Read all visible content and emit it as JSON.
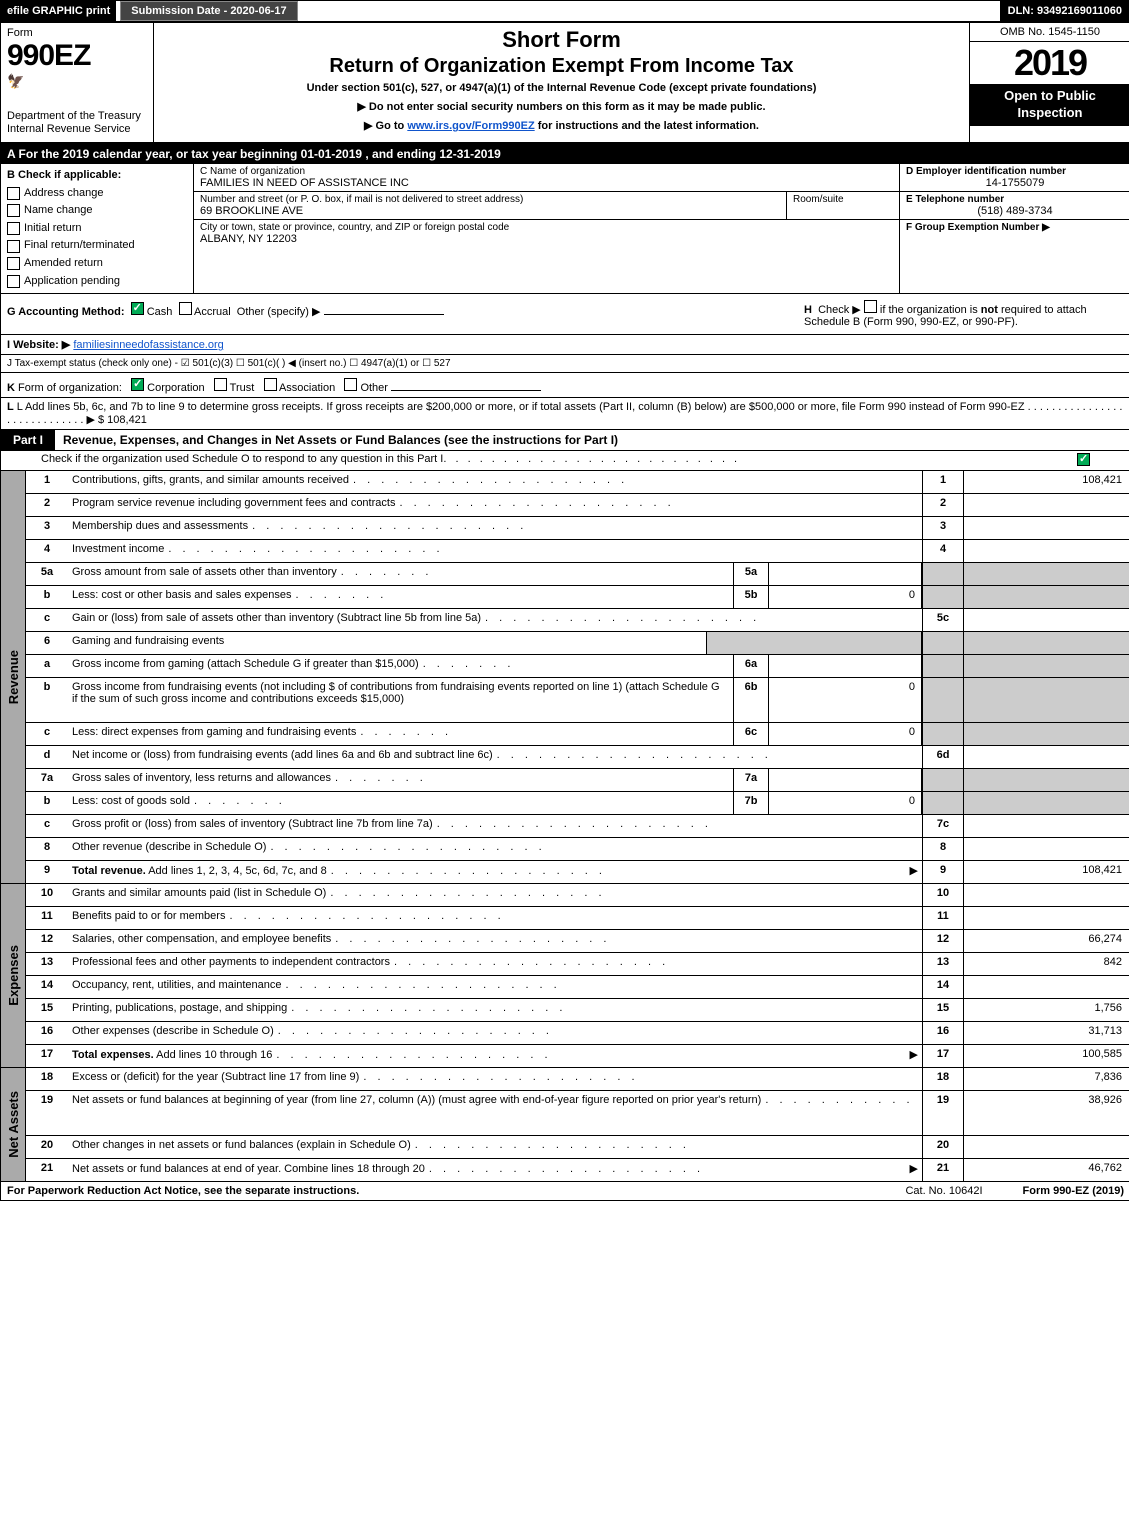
{
  "top_bar": {
    "efile": "efile GRAPHIC print",
    "submission": "Submission Date - 2020-06-17",
    "dln": "DLN: 93492169011060"
  },
  "header": {
    "form_word": "Form",
    "form_number": "990EZ",
    "dept": "Department of the Treasury",
    "irs": "Internal Revenue Service",
    "short_form": "Short Form",
    "return_title": "Return of Organization Exempt From Income Tax",
    "under_section": "Under section 501(c), 527, or 4947(a)(1) of the Internal Revenue Code (except private foundations)",
    "no_ssn": "▶ Do not enter social security numbers on this form as it may be made public.",
    "goto": "▶ Go to www.irs.gov/Form990EZ for instructions and the latest information.",
    "goto_prefix": "▶ Go to ",
    "goto_link": "www.irs.gov/Form990EZ",
    "goto_suffix": " for instructions and the latest information.",
    "omb": "OMB No. 1545-1150",
    "year": "2019",
    "open_public": "Open to Public Inspection"
  },
  "period": {
    "text": "A For the 2019 calendar year, or tax year beginning 01-01-2019 , and ending 12-31-2019"
  },
  "section_b": {
    "label": "B Check if applicable:",
    "items": [
      "Address change",
      "Name change",
      "Initial return",
      "Final return/terminated",
      "Amended return",
      "Application pending"
    ]
  },
  "section_c": {
    "name_label": "C Name of organization",
    "name": "FAMILIES IN NEED OF ASSISTANCE INC",
    "addr_label": "Number and street (or P. O. box, if mail is not delivered to street address)",
    "addr": "69 BROOKLINE AVE",
    "room_label": "Room/suite",
    "city_label": "City or town, state or province, country, and ZIP or foreign postal code",
    "city": "ALBANY, NY  12203"
  },
  "section_d": {
    "label": "D Employer identification number",
    "value": "14-1755079"
  },
  "section_e": {
    "label": "E Telephone number",
    "value": "(518) 489-3734"
  },
  "section_f": {
    "label": "F Group Exemption Number   ▶"
  },
  "section_g": {
    "label": "G Accounting Method:",
    "cash": "Cash",
    "accrual": "Accrual",
    "other": "Other (specify) ▶"
  },
  "section_h": {
    "text": "H  Check ▶     if the organization is not required to attach Schedule B (Form 990, 990-EZ, or 990-PF)."
  },
  "section_i": {
    "label": "I Website: ▶",
    "value": "familiesinneedofassistance.org"
  },
  "section_j": {
    "text": "J Tax-exempt status (check only one) - ☑ 501(c)(3)  ☐ 501(c)(  ) ◀ (insert no.)  ☐ 4947(a)(1) or  ☐ 527"
  },
  "section_k": {
    "text": "K Form of organization:   ☑ Corporation   ☐ Trust   ☐ Association   ☐ Other"
  },
  "section_l": {
    "text": "L Add lines 5b, 6c, and 7b to line 9 to determine gross receipts. If gross receipts are $200,000 or more, or if total assets (Part II, column (B) below) are $500,000 or more, file Form 990 instead of Form 990-EZ",
    "dots": ". . . . . . . . . . . . . . . . . . . . . . . . . . . . .",
    "amount": "▶ $ 108,421"
  },
  "part1": {
    "tab": "Part I",
    "title": "Revenue, Expenses, and Changes in Net Assets or Fund Balances (see the instructions for Part I)",
    "subtitle": "Check if the organization used Schedule O to respond to any question in this Part I"
  },
  "side_labels": {
    "revenue": "Revenue",
    "expenses": "Expenses",
    "net_assets": "Net Assets"
  },
  "revenue_rows": [
    {
      "n": "1",
      "desc": "Contributions, gifts, grants, and similar amounts received",
      "ln": "1",
      "val": "108,421"
    },
    {
      "n": "2",
      "desc": "Program service revenue including government fees and contracts",
      "ln": "2",
      "val": ""
    },
    {
      "n": "3",
      "desc": "Membership dues and assessments",
      "ln": "3",
      "val": ""
    },
    {
      "n": "4",
      "desc": "Investment income",
      "ln": "4",
      "val": ""
    },
    {
      "n": "5a",
      "desc": "Gross amount from sale of assets other than inventory",
      "sub": "5a",
      "subval": "",
      "grey": true
    },
    {
      "n": "b",
      "desc": "Less: cost or other basis and sales expenses",
      "sub": "5b",
      "subval": "0",
      "grey": true
    },
    {
      "n": "c",
      "desc": "Gain or (loss) from sale of assets other than inventory (Subtract line 5b from line 5a)",
      "ln": "5c",
      "val": ""
    },
    {
      "n": "6",
      "desc": "Gaming and fundraising events",
      "nolinecol": true,
      "grey": true
    },
    {
      "n": "a",
      "desc": "Gross income from gaming (attach Schedule G if greater than $15,000)",
      "sub": "6a",
      "subval": "",
      "grey": true
    },
    {
      "n": "b",
      "desc": "Gross income from fundraising events (not including $                       of contributions from fundraising events reported on line 1) (attach Schedule G if the sum of such gross income and contributions exceeds $15,000)",
      "sub": "6b",
      "subval": "0",
      "grey": true,
      "tall": true
    },
    {
      "n": "c",
      "desc": "Less: direct expenses from gaming and fundraising events",
      "sub": "6c",
      "subval": "0",
      "grey": true
    },
    {
      "n": "d",
      "desc": "Net income or (loss) from fundraising events (add lines 6a and 6b and subtract line 6c)",
      "ln": "6d",
      "val": ""
    },
    {
      "n": "7a",
      "desc": "Gross sales of inventory, less returns and allowances",
      "sub": "7a",
      "subval": "",
      "grey": true
    },
    {
      "n": "b",
      "desc": "Less: cost of goods sold",
      "sub": "7b",
      "subval": "0",
      "grey": true
    },
    {
      "n": "c",
      "desc": "Gross profit or (loss) from sales of inventory (Subtract line 7b from line 7a)",
      "ln": "7c",
      "val": ""
    },
    {
      "n": "8",
      "desc": "Other revenue (describe in Schedule O)",
      "ln": "8",
      "val": ""
    },
    {
      "n": "9",
      "desc": "Total revenue. Add lines 1, 2, 3, 4, 5c, 6d, 7c, and 8",
      "ln": "9",
      "val": "108,421",
      "bold": true,
      "arrow": true
    }
  ],
  "expense_rows": [
    {
      "n": "10",
      "desc": "Grants and similar amounts paid (list in Schedule O)",
      "ln": "10",
      "val": ""
    },
    {
      "n": "11",
      "desc": "Benefits paid to or for members",
      "ln": "11",
      "val": ""
    },
    {
      "n": "12",
      "desc": "Salaries, other compensation, and employee benefits",
      "ln": "12",
      "val": "66,274"
    },
    {
      "n": "13",
      "desc": "Professional fees and other payments to independent contractors",
      "ln": "13",
      "val": "842"
    },
    {
      "n": "14",
      "desc": "Occupancy, rent, utilities, and maintenance",
      "ln": "14",
      "val": ""
    },
    {
      "n": "15",
      "desc": "Printing, publications, postage, and shipping",
      "ln": "15",
      "val": "1,756"
    },
    {
      "n": "16",
      "desc": "Other expenses (describe in Schedule O)",
      "ln": "16",
      "val": "31,713"
    },
    {
      "n": "17",
      "desc": "Total expenses. Add lines 10 through 16",
      "ln": "17",
      "val": "100,585",
      "bold": true,
      "arrow": true
    }
  ],
  "netasset_rows": [
    {
      "n": "18",
      "desc": "Excess or (deficit) for the year (Subtract line 17 from line 9)",
      "ln": "18",
      "val": "7,836"
    },
    {
      "n": "19",
      "desc": "Net assets or fund balances at beginning of year (from line 27, column (A)) (must agree with end-of-year figure reported on prior year's return)",
      "ln": "19",
      "val": "38,926",
      "tall": true,
      "grey_top": true
    },
    {
      "n": "20",
      "desc": "Other changes in net assets or fund balances (explain in Schedule O)",
      "ln": "20",
      "val": ""
    },
    {
      "n": "21",
      "desc": "Net assets or fund balances at end of year. Combine lines 18 through 20",
      "ln": "21",
      "val": "46,762",
      "arrow": true
    }
  ],
  "footer": {
    "left": "For Paperwork Reduction Act Notice, see the separate instructions.",
    "mid": "Cat. No. 10642I",
    "right": "Form 990-EZ (2019)"
  },
  "colors": {
    "black": "#000000",
    "white": "#ffffff",
    "grey_side": "#aaaaaa",
    "grey_cell": "#cccccc",
    "link": "#1155cc",
    "check_green": "#00aa55"
  }
}
